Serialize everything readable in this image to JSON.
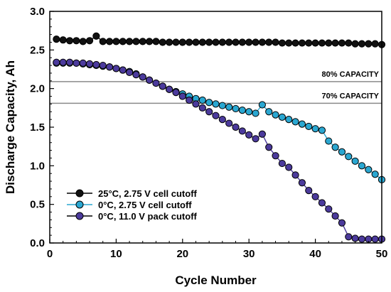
{
  "chart_data": {
    "type": "scatter",
    "xlabel": "Cycle Number",
    "ylabel": "Discharge Capacity, Ah",
    "xlim": [
      0,
      50
    ],
    "ylim": [
      0,
      3.0
    ],
    "xticks": [
      "0",
      "10",
      "20",
      "30",
      "40",
      "50"
    ],
    "yticks": [
      "0.0",
      "0.5",
      "1.0",
      "1.5",
      "2.0",
      "2.5",
      "3.0"
    ],
    "grid": false,
    "legend_position": "bottom-left",
    "annotations": [
      {
        "text": "80% CAPACITY",
        "y": 2.09
      },
      {
        "text": "70% CAPACITY",
        "y": 1.81
      }
    ],
    "series": [
      {
        "name": "25°C, 2.75 V cell cutoff",
        "color": "#111111",
        "x": [
          1,
          2,
          3,
          4,
          5,
          6,
          7,
          8,
          9,
          10,
          11,
          12,
          13,
          14,
          15,
          16,
          17,
          18,
          19,
          20,
          21,
          22,
          23,
          24,
          25,
          26,
          27,
          28,
          29,
          30,
          31,
          32,
          33,
          34,
          35,
          36,
          37,
          38,
          39,
          40,
          41,
          42,
          43,
          44,
          45,
          46,
          47,
          48,
          49,
          50
        ],
        "y": [
          2.64,
          2.63,
          2.62,
          2.62,
          2.61,
          2.62,
          2.68,
          2.61,
          2.61,
          2.61,
          2.61,
          2.61,
          2.61,
          2.61,
          2.61,
          2.61,
          2.6,
          2.6,
          2.6,
          2.6,
          2.6,
          2.6,
          2.6,
          2.6,
          2.6,
          2.6,
          2.6,
          2.6,
          2.6,
          2.6,
          2.6,
          2.6,
          2.6,
          2.6,
          2.59,
          2.59,
          2.59,
          2.59,
          2.59,
          2.59,
          2.59,
          2.59,
          2.59,
          2.59,
          2.59,
          2.58,
          2.58,
          2.58,
          2.58,
          2.57
        ]
      },
      {
        "name": "0°C, 2.75 V cell cutoff",
        "color": "#2aa7d1",
        "x": [
          1,
          2,
          3,
          4,
          5,
          6,
          7,
          8,
          9,
          10,
          11,
          12,
          13,
          14,
          15,
          16,
          17,
          18,
          19,
          20,
          21,
          22,
          23,
          24,
          25,
          26,
          27,
          28,
          29,
          30,
          31,
          32,
          33,
          34,
          35,
          36,
          37,
          38,
          39,
          40,
          41,
          42,
          43,
          44,
          45,
          46,
          47,
          48,
          49,
          50
        ],
        "y": [
          2.33,
          2.33,
          2.33,
          2.33,
          2.32,
          2.31,
          2.3,
          2.29,
          2.28,
          2.26,
          2.24,
          2.22,
          2.19,
          2.15,
          2.11,
          2.07,
          2.03,
          1.99,
          1.96,
          1.93,
          1.9,
          1.87,
          1.85,
          1.82,
          1.8,
          1.78,
          1.76,
          1.74,
          1.72,
          1.7,
          1.68,
          1.79,
          1.7,
          1.66,
          1.63,
          1.6,
          1.57,
          1.54,
          1.51,
          1.48,
          1.46,
          1.32,
          1.24,
          1.18,
          1.12,
          1.06,
          1.0,
          0.95,
          0.89,
          0.82
        ]
      },
      {
        "name": "0°C, 11.0 V pack cutoff",
        "color": "#4b3a9c",
        "x": [
          1,
          2,
          3,
          4,
          5,
          6,
          7,
          8,
          9,
          10,
          11,
          12,
          13,
          14,
          15,
          16,
          17,
          18,
          19,
          20,
          21,
          22,
          23,
          24,
          25,
          26,
          27,
          28,
          29,
          30,
          31,
          32,
          33,
          34,
          35,
          36,
          37,
          38,
          39,
          40,
          41,
          42,
          43,
          44,
          45,
          46,
          47,
          48,
          49,
          50
        ],
        "y": [
          2.34,
          2.34,
          2.34,
          2.33,
          2.33,
          2.32,
          2.31,
          2.3,
          2.28,
          2.26,
          2.24,
          2.21,
          2.18,
          2.15,
          2.11,
          2.07,
          2.03,
          1.99,
          1.95,
          1.9,
          1.85,
          1.8,
          1.75,
          1.7,
          1.65,
          1.6,
          1.55,
          1.5,
          1.45,
          1.4,
          1.35,
          1.41,
          1.24,
          1.13,
          1.03,
          0.98,
          0.88,
          0.78,
          0.68,
          0.6,
          0.52,
          0.44,
          0.35,
          0.26,
          0.08,
          0.06,
          0.05,
          0.05,
          0.05,
          0.05
        ]
      }
    ]
  }
}
